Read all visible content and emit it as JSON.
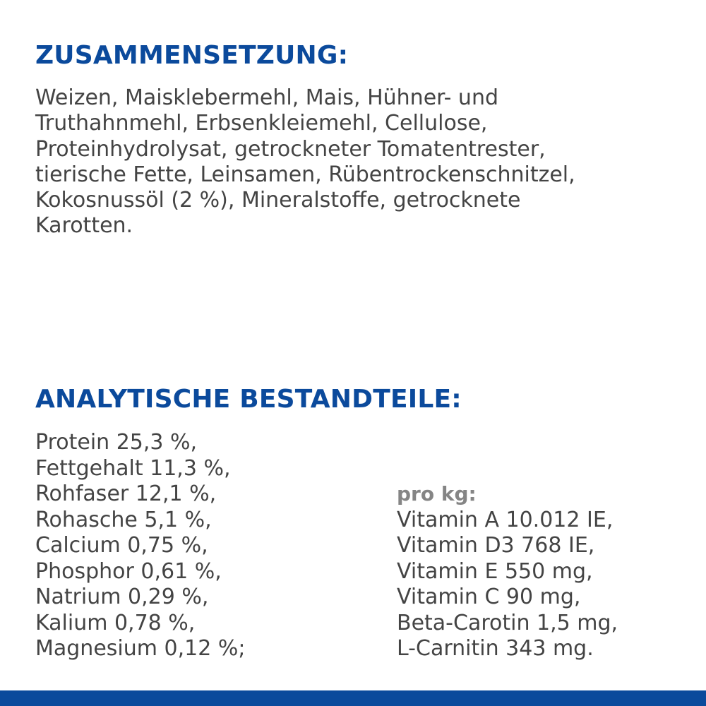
{
  "composition": {
    "heading": "ZUSAMMENSETZUNG:",
    "lines": [
      "Weizen, Maisklebermehl, Mais, Hühner- und",
      "Truthahnmehl, Erbsenkleiemehl, Cellulose,",
      "Proteinhydrolysat, getrockneter Tomatentrester,",
      "tierische Fette, Leinsamen, Rübentrockenschnitzel,",
      "Kokosnussöl (2 %), Mineralstoffe, getrocknete",
      "Karotten."
    ]
  },
  "analytical": {
    "heading": "ANALYTISCHE BESTANDTEILE:",
    "constituents": [
      "Protein 25,3 %,",
      "Fettgehalt 11,3 %,",
      "Rohfaser 12,1 %,",
      "Rohasche 5,1 %,",
      "Calcium 0,75 %,",
      "Phosphor 0,61 %,",
      "Natrium 0,29 %,",
      "Kalium 0,78 %,",
      "Magnesium 0,12 %;"
    ],
    "per_kg_label": "pro kg:",
    "per_kg": [
      "Vitamin A 10.012 IE,",
      "Vitamin D3 768 IE,",
      "Vitamin E 550 mg,",
      "Vitamin C 90 mg,",
      "Beta-Carotin 1,5 mg,",
      "L-Carnitin 343 mg."
    ]
  },
  "colors": {
    "heading": "#0b4a9c",
    "body_text": "#444444",
    "per_kg_label": "#858585",
    "bottom_bar": "#0b4a9c"
  }
}
